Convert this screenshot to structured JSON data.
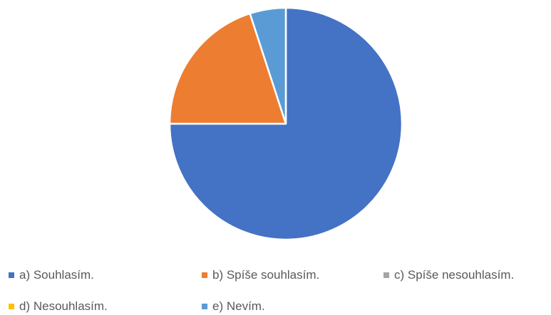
{
  "chart_data": {
    "type": "pie",
    "categories": [
      "a) Souhlasím.",
      "b) Spíše souhlasím.",
      "c) Spíše nesouhlasím.",
      "d) Nesouhlasím.",
      "e) Nevím."
    ],
    "values": [
      75,
      20,
      0,
      0,
      5
    ],
    "colors": [
      "#4472C4",
      "#ED7D31",
      "#A5A5A5",
      "#FFC000",
      "#5B9BD5"
    ],
    "legend_position": "bottom",
    "title": ""
  }
}
